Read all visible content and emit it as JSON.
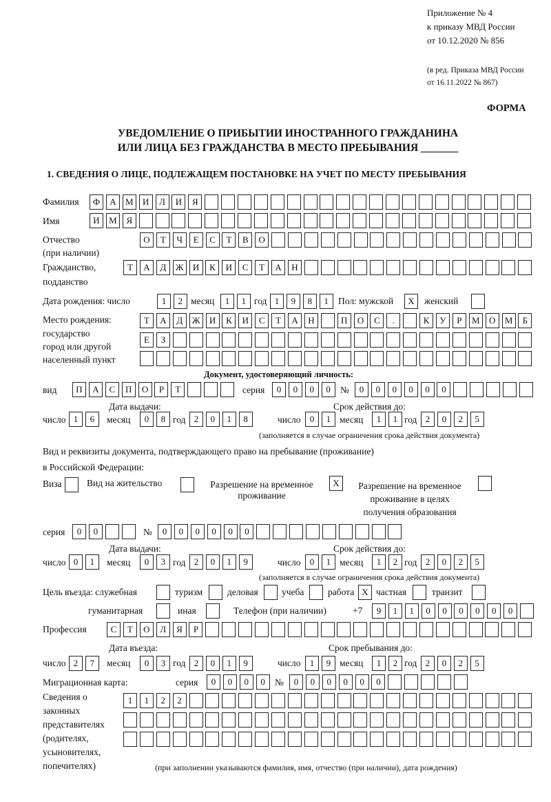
{
  "header": {
    "line1": "Приложение № 4",
    "line2": "к приказу МВД России",
    "line3": "от 10.12.2020 № 856",
    "line4": "(в ред. Приказа МВД России",
    "line5": "от 16.11.2022 № 867)",
    "form_label": "ФОРМА",
    "title1": "УВЕДОМЛЕНИЕ О ПРИБЫТИИ ИНОСТРАННОГО ГРАЖДАНИНА",
    "title2": "ИЛИ ЛИЦА БЕЗ ГРАЖДАНСТВА В МЕСТО ПРЕБЫВАНИЯ _______",
    "section1": "1. СВЕДЕНИЯ О ЛИЦЕ, ПОДЛЕЖАЩЕМ ПОСТАНОВКЕ НА УЧЕТ ПО МЕСТУ ПРЕБЫВАНИЯ"
  },
  "labels": {
    "surname": "Фамилия",
    "name": "Имя",
    "patronymic": "Отчество",
    "patronymic2": "(при наличии)",
    "citizenship": "Гражданство,",
    "citizenship2": "подданство",
    "birth_date": "Дата рождения:  число",
    "month": "месяц",
    "year": "год",
    "day": "число",
    "sex_male": "Пол: мужской",
    "sex_female": "женский",
    "birth_place1": "Место рождения:",
    "birth_place2": "государство",
    "birth_place3": "город или другой",
    "birth_place4": "населенный пункт",
    "id_doc": "Документ, удостоверяющий личность:",
    "kind": "вид",
    "series": "серия",
    "number": "№",
    "issue_date": "Дата выдачи:",
    "valid_until": "Срок действия до:",
    "valid_note": "(заполняется в случае ограничения срока действия документа)",
    "stay_doc1": "Вид и реквизиты документа, подтверждающего право на пребывание (проживание)",
    "stay_doc2": "в Российской Федерации:",
    "visa": "Виза",
    "residence": "Вид на жительство",
    "temp_res1": "Разрешение на временное",
    "temp_res2": "проживание",
    "edu_res1": "Разрешение на временное",
    "edu_res2": "проживание в целях",
    "edu_res3": "получения образования",
    "purpose": "Цель въезда: служебная",
    "tourism": "туризм",
    "business": "деловая",
    "study": "учеба",
    "work": "работа",
    "private": "частная",
    "transit": "транзит",
    "humanitarian": "гуманитарная",
    "other": "иная",
    "phone": "Телефон (при наличии)",
    "phone_prefix": "+7",
    "profession": "Профессия",
    "entry_date": "Дата въезда:",
    "stay_until": "Срок пребывания до:",
    "migration_card": "Миграционная карта:",
    "reps1": "Сведения о",
    "reps2": "законных",
    "reps3": "представителях",
    "reps4": "(родителях,",
    "reps5": "усыновителях,",
    "reps6": "попечителях)",
    "reps_note": "(при заполнении указываются фамилия, имя, отчество (при наличии), дата рождения)"
  },
  "values": {
    "surname": "ФАМИЛИЯ",
    "name": "ИМЯ",
    "patronymic": "ОТЧЕСТВО",
    "citizenship": "ТАДЖИКИСТАН",
    "birth": {
      "day": "12",
      "month": "11",
      "year": "1981"
    },
    "sex_male": "X",
    "sex_female": "",
    "birth_place_row1": "ТАДЖИКИСТАН ПОС. КУРМОМБ",
    "birth_place_row2": "ЕЗ",
    "birth_place_row3": "",
    "id_kind": "ПАСПОРТ",
    "id_series": "0000",
    "id_number": "000000",
    "id_issue": {
      "day": "16",
      "month": "08",
      "year": "2018"
    },
    "id_valid": {
      "day": "01",
      "month": "11",
      "year": "2025"
    },
    "visa": "",
    "residence": "",
    "temp_res": "X",
    "edu_res": "",
    "stay_series": "00",
    "stay_number": "000000",
    "stay_issue": {
      "day": "01",
      "month": "03",
      "year": "2019"
    },
    "stay_valid": {
      "day": "01",
      "month": "12",
      "year": "2025"
    },
    "purpose": {
      "official": "",
      "tourism": "",
      "business": "",
      "study": "",
      "work": "X",
      "private": "",
      "transit": "",
      "humanitarian": "",
      "other": ""
    },
    "phone": "911000000",
    "profession": "СТОЛЯР",
    "entry": {
      "day": "27",
      "month": "03",
      "year": "2019"
    },
    "stay_until": {
      "day": "19",
      "month": "12",
      "year": "2025"
    },
    "mc_series": "0000",
    "mc_number": "000000",
    "reps_row1": "1122",
    "reps_row2": "",
    "reps_row3": ""
  }
}
